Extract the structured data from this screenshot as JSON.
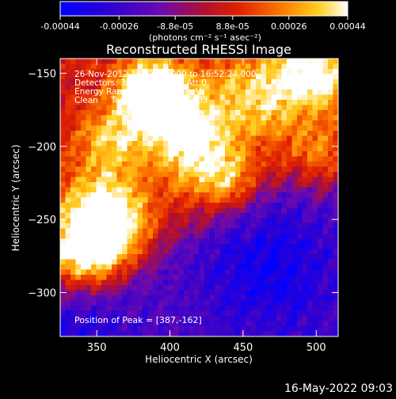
{
  "chart_data": {
    "type": "heatmap",
    "title": "Reconstructed RHESSI Image",
    "xlabel": "Heliocentric X (arcsec)",
    "ylabel": "Heliocentric Y (arcsec)",
    "xlim": [
      325,
      515
    ],
    "ylim": [
      -330,
      -140
    ],
    "x_ticks": [
      350,
      400,
      450,
      500
    ],
    "y_ticks": [
      -150,
      -200,
      -250,
      -300
    ],
    "colorbar": {
      "range": [
        -0.00044,
        0.00044
      ],
      "tick_labels": [
        "-0.00044",
        "-0.00026",
        "-8.8e-05",
        "8.8e-05",
        "0.00026",
        "0.00044"
      ],
      "tick_values": [
        -0.00044,
        -0.00026,
        -8.8e-05,
        8.8e-05,
        0.00026,
        0.00044
      ],
      "units": "(photons cm⁻² s⁻¹ asec⁻²)"
    },
    "annotations": [
      "26-Nov-2012 16:47:12.000 to 16:52:24.000",
      "Detectors: 3F 5F 6F 7F 8F, Att 0",
      "Energy Range: 25.0 - 50.0 keV",
      "Clean     Total counts: 6.45E+03"
    ],
    "peak_text": "Position of Peak = [387,-162]",
    "peak": [
      387,
      -162
    ],
    "colormap": "blue-purple-red-yellow-white",
    "colors": {
      "low": "#0000ff",
      "mid_low": "#3c0ca0",
      "mid": "#c81010",
      "mid_high": "#ffa000",
      "high": "#ffffff"
    }
  },
  "footer": {
    "timestamp": "16-May-2022 09:03"
  }
}
